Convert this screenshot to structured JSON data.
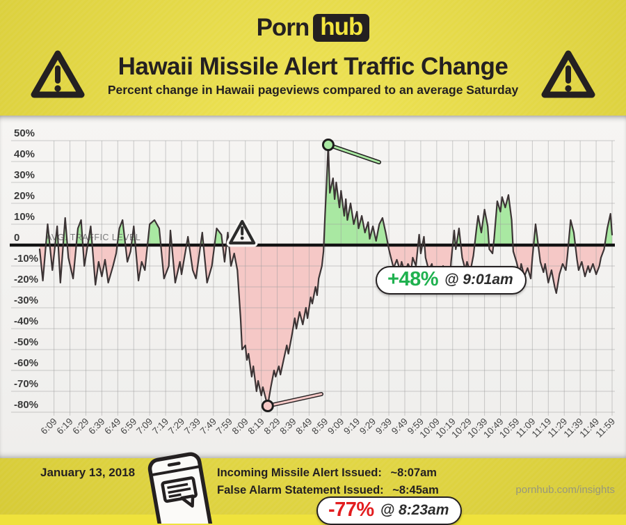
{
  "brand": {
    "logo_part1": "Porn",
    "logo_part2": "hub"
  },
  "header": {
    "title": "Hawaii Missile Alert Traffic Change",
    "subtitle": "Percent change in Hawaii pageviews compared to an average Saturday"
  },
  "chart_data": {
    "type": "area",
    "title": "Hawaii Missile Alert Traffic Change",
    "ylabel": "Percent change in pageviews vs average Saturday",
    "ylim": [
      -80,
      50
    ],
    "grid": true,
    "baseline_label": "AVG. TRAFFIC LEVEL",
    "y_ticks": [
      {
        "label": "50%",
        "value": 50
      },
      {
        "label": "40%",
        "value": 40
      },
      {
        "label": "30%",
        "value": 30
      },
      {
        "label": "20%",
        "value": 20
      },
      {
        "label": "10%",
        "value": 10
      },
      {
        "label": "0",
        "value": 0
      },
      {
        "label": "-10%",
        "value": -10
      },
      {
        "label": "-20%",
        "value": -20
      },
      {
        "label": "-30%",
        "value": -30
      },
      {
        "label": "-40%",
        "value": -40
      },
      {
        "label": "-50%",
        "value": -50
      },
      {
        "label": "-60%",
        "value": -60
      },
      {
        "label": "-70%",
        "value": -70
      },
      {
        "label": "-80%",
        "value": -80
      }
    ],
    "x_ticks": [
      "6:09",
      "6:19",
      "6:29",
      "6:39",
      "6:49",
      "6:59",
      "7:09",
      "7:19",
      "7:29",
      "7:39",
      "7:49",
      "7:59",
      "8:09",
      "8:19",
      "8:29",
      "8:39",
      "8:49",
      "8:59",
      "9:09",
      "9:19",
      "9:29",
      "9:39",
      "9:49",
      "9:59",
      "10:09",
      "10:19",
      "10:29",
      "10:39",
      "10:49",
      "10:59",
      "11:09",
      "11:19",
      "11:29",
      "11:39",
      "11:49",
      "11:59"
    ],
    "series": [
      {
        "name": "traffic_change_pct",
        "x_unit": "minutes_after_6am",
        "points": [
          [
            0,
            -2
          ],
          [
            2,
            -17
          ],
          [
            5,
            10
          ],
          [
            8,
            -12
          ],
          [
            11,
            9
          ],
          [
            13,
            -18
          ],
          [
            16,
            13
          ],
          [
            18,
            -6
          ],
          [
            21,
            -16
          ],
          [
            24,
            8
          ],
          [
            26,
            12
          ],
          [
            28,
            -10
          ],
          [
            32,
            9
          ],
          [
            35,
            -19
          ],
          [
            37,
            -8
          ],
          [
            39,
            -15
          ],
          [
            41,
            -7
          ],
          [
            43,
            -18
          ],
          [
            46,
            -10
          ],
          [
            48,
            -4
          ],
          [
            50,
            8
          ],
          [
            52,
            12
          ],
          [
            55,
            -8
          ],
          [
            57,
            -3
          ],
          [
            59,
            9
          ],
          [
            62,
            -17
          ],
          [
            64,
            -8
          ],
          [
            66,
            -12
          ],
          [
            69,
            10
          ],
          [
            72,
            12
          ],
          [
            75,
            8
          ],
          [
            78,
            -16
          ],
          [
            81,
            -10
          ],
          [
            82,
            7
          ],
          [
            85,
            -18
          ],
          [
            88,
            -8
          ],
          [
            89,
            -14
          ],
          [
            93,
            4
          ],
          [
            96,
            -12
          ],
          [
            98,
            -16
          ],
          [
            102,
            6
          ],
          [
            105,
            -18
          ],
          [
            108,
            -10
          ],
          [
            111,
            8
          ],
          [
            114,
            5
          ],
          [
            116,
            -8
          ],
          [
            118,
            6
          ],
          [
            120,
            -10
          ],
          [
            122,
            -4
          ],
          [
            124,
            -12
          ],
          [
            126,
            -35
          ],
          [
            127,
            -50
          ],
          [
            129,
            -48
          ],
          [
            130,
            -55
          ],
          [
            131,
            -52
          ],
          [
            133,
            -63
          ],
          [
            134,
            -58
          ],
          [
            136,
            -70
          ],
          [
            137,
            -65
          ],
          [
            139,
            -72
          ],
          [
            140,
            -68
          ],
          [
            143,
            -77
          ],
          [
            145,
            -68
          ],
          [
            147,
            -60
          ],
          [
            148,
            -63
          ],
          [
            150,
            -58
          ],
          [
            151,
            -62
          ],
          [
            153,
            -55
          ],
          [
            155,
            -48
          ],
          [
            156,
            -52
          ],
          [
            158,
            -44
          ],
          [
            160,
            -35
          ],
          [
            161,
            -40
          ],
          [
            163,
            -32
          ],
          [
            165,
            -38
          ],
          [
            167,
            -30
          ],
          [
            168,
            -35
          ],
          [
            170,
            -25
          ],
          [
            171,
            -28
          ],
          [
            173,
            -20
          ],
          [
            174,
            -24
          ],
          [
            175,
            -16
          ],
          [
            177,
            -10
          ],
          [
            178,
            -3
          ],
          [
            179,
            15
          ],
          [
            180,
            30
          ],
          [
            181,
            48
          ],
          [
            182,
            25
          ],
          [
            184,
            32
          ],
          [
            185,
            22
          ],
          [
            186,
            30
          ],
          [
            188,
            18
          ],
          [
            189,
            26
          ],
          [
            191,
            14
          ],
          [
            192,
            22
          ],
          [
            193,
            12
          ],
          [
            195,
            20
          ],
          [
            197,
            10
          ],
          [
            199,
            16
          ],
          [
            200,
            8
          ],
          [
            202,
            14
          ],
          [
            204,
            6
          ],
          [
            206,
            11
          ],
          [
            207,
            3
          ],
          [
            209,
            9
          ],
          [
            211,
            2
          ],
          [
            213,
            10
          ],
          [
            215,
            13
          ],
          [
            217,
            6
          ],
          [
            219,
            -2
          ],
          [
            220,
            -5
          ],
          [
            222,
            -11
          ],
          [
            224,
            -7
          ],
          [
            226,
            -12
          ],
          [
            227,
            -8
          ],
          [
            229,
            -13
          ],
          [
            231,
            -9
          ],
          [
            233,
            -12
          ],
          [
            234,
            -6
          ],
          [
            236,
            -10
          ],
          [
            238,
            5
          ],
          [
            239,
            -4
          ],
          [
            241,
            4
          ],
          [
            242,
            -6
          ],
          [
            244,
            -12
          ],
          [
            246,
            -9
          ],
          [
            248,
            -19
          ],
          [
            250,
            -12
          ],
          [
            251,
            -16
          ],
          [
            253,
            -10
          ],
          [
            255,
            -14
          ],
          [
            257,
            -19
          ],
          [
            258,
            -8
          ],
          [
            260,
            7
          ],
          [
            261,
            -2
          ],
          [
            263,
            8
          ],
          [
            265,
            -6
          ],
          [
            267,
            -12
          ],
          [
            268,
            -8
          ],
          [
            270,
            -13
          ],
          [
            272,
            -5
          ],
          [
            274,
            8
          ],
          [
            275,
            14
          ],
          [
            277,
            6
          ],
          [
            279,
            17
          ],
          [
            281,
            9
          ],
          [
            282,
            -2
          ],
          [
            284,
            -4
          ],
          [
            285,
            3
          ],
          [
            287,
            21
          ],
          [
            289,
            16
          ],
          [
            290,
            23
          ],
          [
            292,
            18
          ],
          [
            294,
            24
          ],
          [
            296,
            12
          ],
          [
            297,
            -3
          ],
          [
            299,
            -8
          ],
          [
            301,
            -14
          ],
          [
            302,
            -9
          ],
          [
            304,
            -15
          ],
          [
            306,
            -11
          ],
          [
            308,
            -16
          ],
          [
            309,
            -6
          ],
          [
            311,
            10
          ],
          [
            312,
            4
          ],
          [
            314,
            -8
          ],
          [
            316,
            -13
          ],
          [
            317,
            -9
          ],
          [
            319,
            -18
          ],
          [
            321,
            -12
          ],
          [
            323,
            -20
          ],
          [
            324,
            -23
          ],
          [
            326,
            -14
          ],
          [
            328,
            -9
          ],
          [
            330,
            -12
          ],
          [
            331,
            -5
          ],
          [
            333,
            12
          ],
          [
            335,
            6
          ],
          [
            337,
            -7
          ],
          [
            338,
            -12
          ],
          [
            340,
            -8
          ],
          [
            342,
            -15
          ],
          [
            344,
            -10
          ],
          [
            345,
            -13
          ],
          [
            347,
            -9
          ],
          [
            349,
            -14
          ],
          [
            351,
            -10
          ],
          [
            352,
            -6
          ],
          [
            354,
            -2
          ],
          [
            356,
            8
          ],
          [
            358,
            15
          ],
          [
            359,
            5
          ]
        ]
      }
    ],
    "annotations": [
      {
        "id": "peak",
        "value_label": "+48%",
        "time_label": "@ 9:01am",
        "t": 181,
        "v": 48,
        "color": "#1fb14f"
      },
      {
        "id": "trough",
        "value_label": "-77%",
        "time_label": "@ 8:23am",
        "t": 143,
        "v": -77,
        "color": "#e21d1f"
      }
    ],
    "event_marker": {
      "icon": "warning-triangle",
      "t": 127
    }
  },
  "footer": {
    "date": "January 13, 2018",
    "events": [
      {
        "label": "Incoming Missile Alert Issued:",
        "time": "~8:07am"
      },
      {
        "label": "False Alarm Statement Issued:",
        "time": "~8:45am"
      }
    ],
    "site": "pornhub.com/insights"
  },
  "colors": {
    "background_yellow": "#efe23c",
    "ink": "#242021",
    "panel": "#f4f3f1",
    "gridline": "#9b9b9b",
    "zero_line": "#121212",
    "line": "#3c3435",
    "positive_fill": "#a9e8a2",
    "negative_fill": "#f5c8c6",
    "positive_text": "#1fb14f",
    "negative_text": "#e21d1f",
    "avg_label": "#7a7a7a",
    "url_text": "#97977c"
  }
}
